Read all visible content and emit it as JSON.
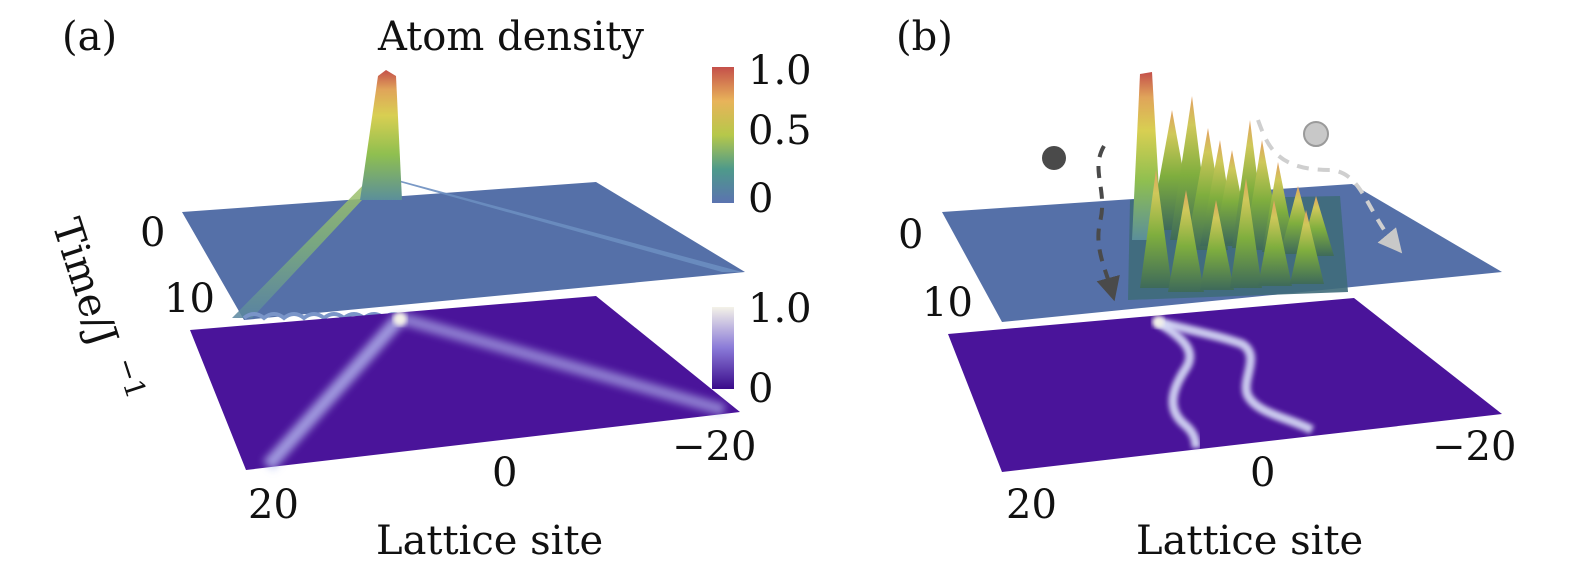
{
  "panels": [
    {
      "id": "a",
      "label": "(a)",
      "title": "Atom density",
      "time_axis_label": "Time/J",
      "time_axis_exponent": "−1",
      "time_ticks": [
        "0",
        "10"
      ],
      "lattice_axis_label": "Lattice site",
      "lattice_ticks": [
        "20",
        "0",
        "−20"
      ],
      "colorbar_top_ticks": [
        "1.0",
        "0.5",
        "0"
      ],
      "colorbar_bottom_ticks": [
        "1.0",
        "0"
      ]
    },
    {
      "id": "b",
      "label": "(b)",
      "time_ticks": [
        "0",
        "10"
      ],
      "lattice_axis_label": "Lattice site",
      "lattice_ticks": [
        "20",
        "0",
        "−20"
      ]
    }
  ],
  "colors": {
    "surface_base": "#5570a8",
    "heatmap_base": "#4a149a",
    "heatmap_trace": "#d9def8",
    "peak": "#c4504a",
    "particle_dark": "#4a4a4a",
    "particle_light": "#c8c8c8"
  }
}
